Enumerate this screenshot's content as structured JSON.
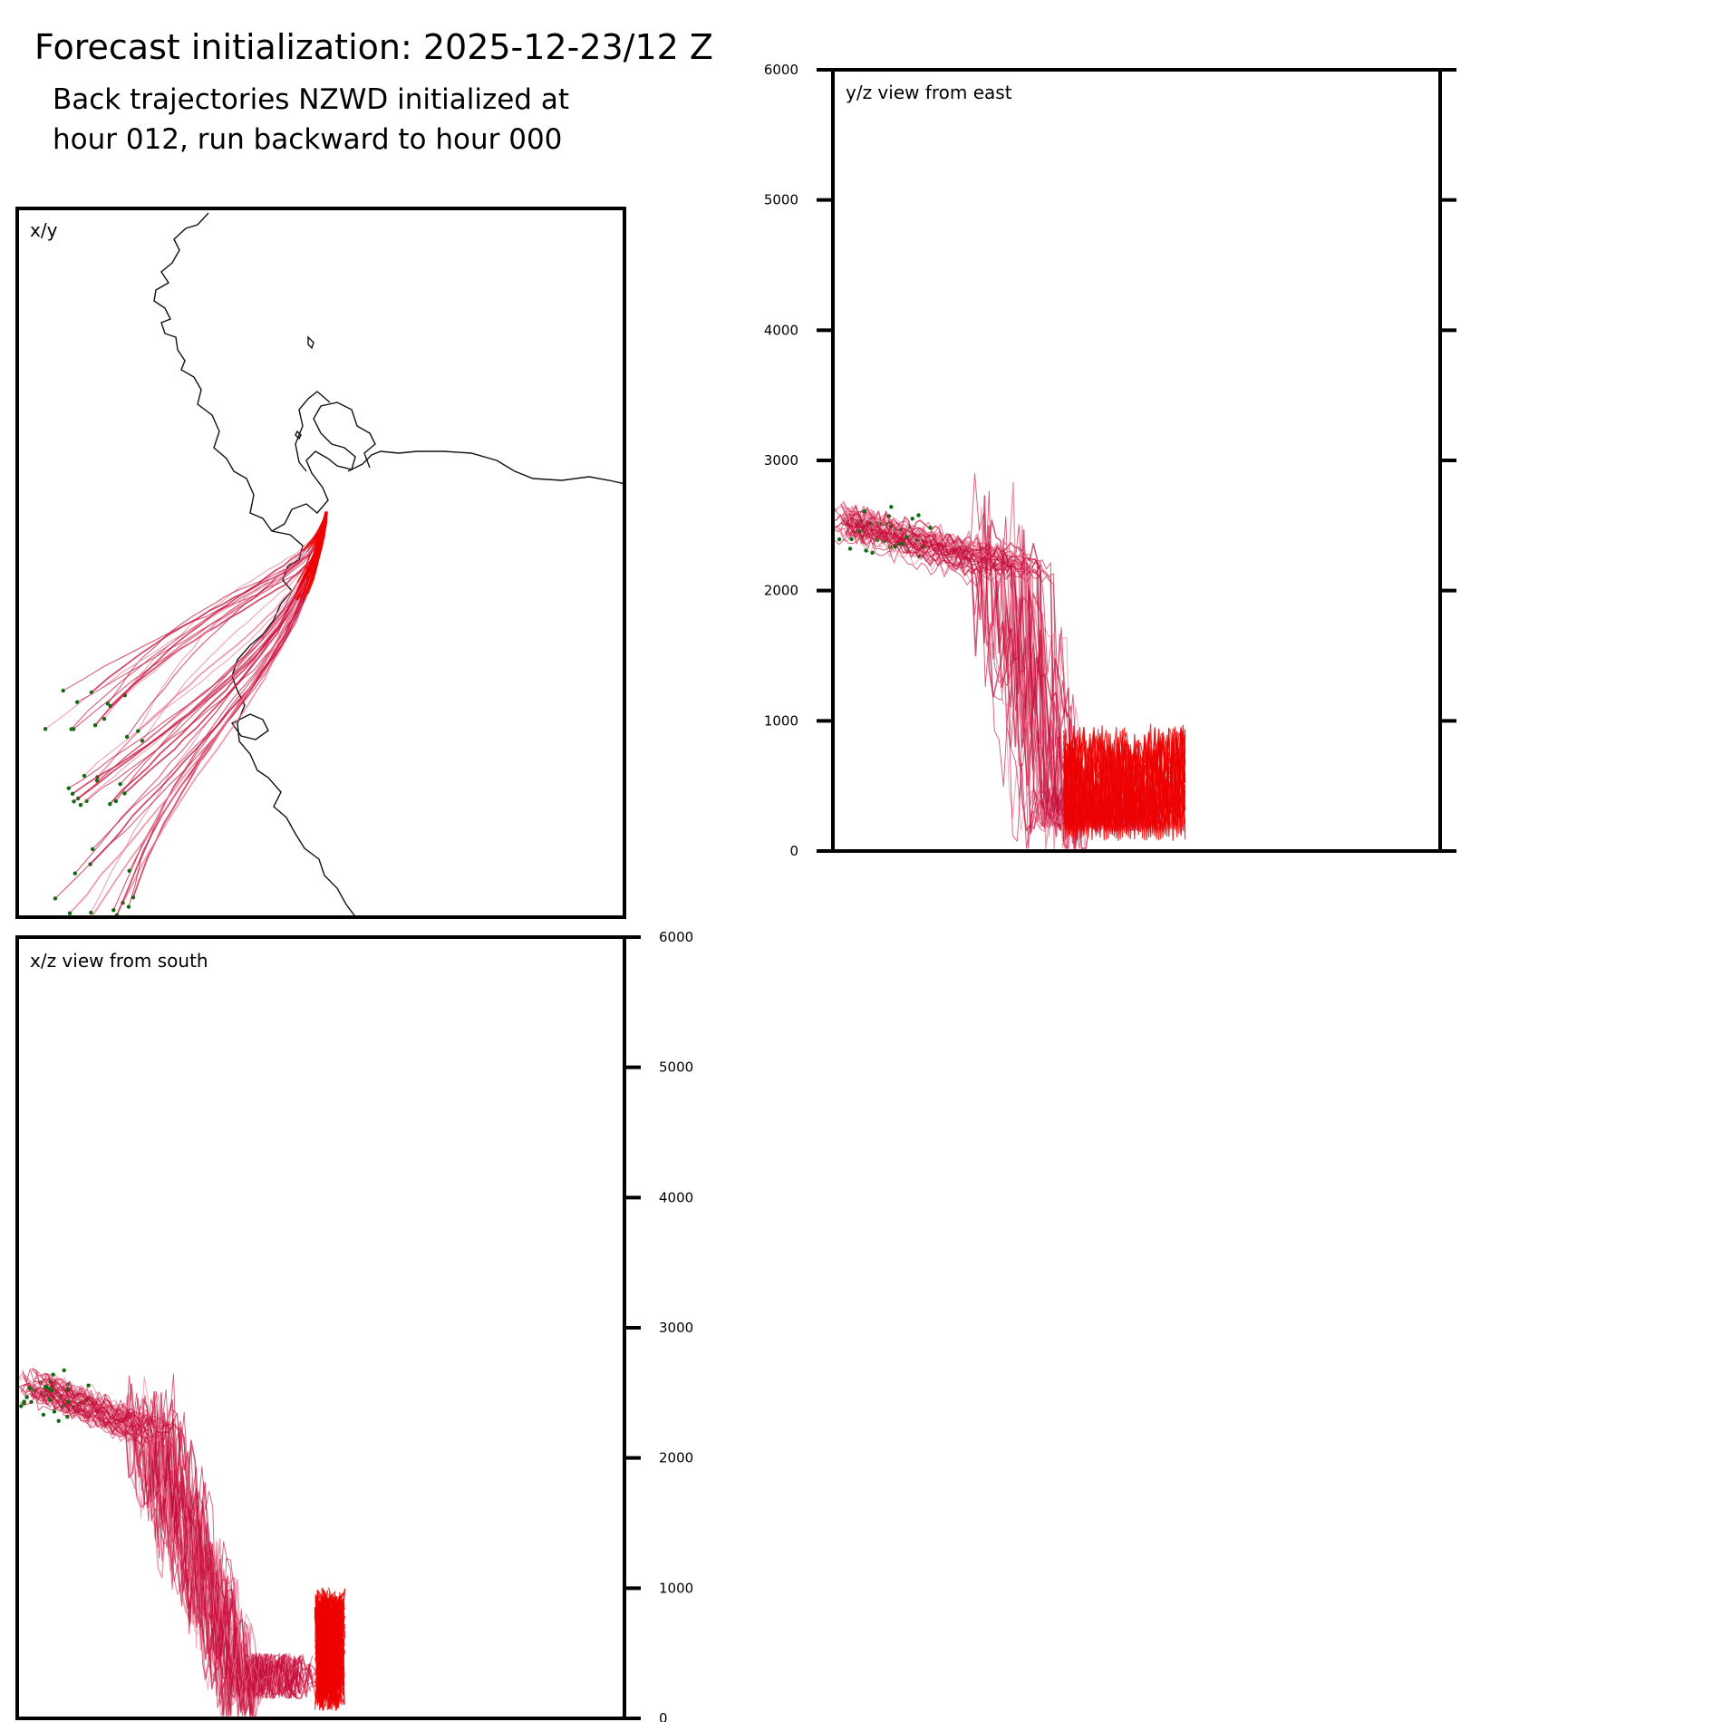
{
  "header": {
    "title": "Forecast initialization: 2025-12-23/12 Z",
    "subtitle_line1": "Back trajectories NZWD initialized at",
    "subtitle_line2": "hour 012, run backward to hour 000"
  },
  "colors": {
    "trajectory_dark": "#c8103c",
    "trajectory_light": "#e87a95",
    "trajectory_recent": "#ee0000",
    "endpoint": "#0f6b0f",
    "coastline": "#111111"
  },
  "chart_data": [
    {
      "type": "line",
      "panel": "xy",
      "label": "x/y",
      "description_units": "map plan view",
      "start_point": "NZWD",
      "series_count": 40
    },
    {
      "type": "line",
      "panel": "yz",
      "label": "y/z view from east",
      "ylim": [
        0,
        6000
      ],
      "yticks": [
        "0",
        "1000",
        "2000",
        "3000",
        "4000",
        "5000",
        "6000"
      ],
      "tick_side": "left-labels, right-ticks"
    },
    {
      "type": "line",
      "panel": "xz",
      "label": "x/z view from south",
      "ylim": [
        0,
        6000
      ],
      "yticks": [
        "0",
        "1000",
        "2000",
        "3000",
        "4000",
        "5000",
        "6000"
      ],
      "tick_side": "right"
    }
  ]
}
